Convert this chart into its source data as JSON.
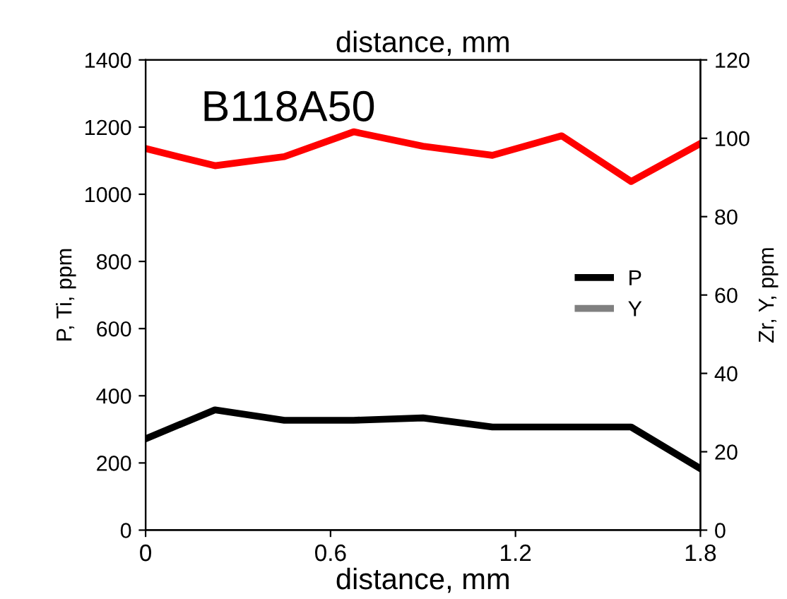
{
  "chart_data": {
    "type": "line",
    "title": "distance, mm",
    "xlabel": "distance, mm",
    "ylabel": "P, Ti, ppm",
    "y2label": "Zr, Y, ppm",
    "annotations": [
      "B118A50"
    ],
    "x": [
      0,
      0.225,
      0.45,
      0.675,
      0.9,
      1.125,
      1.35,
      1.575,
      1.8
    ],
    "series": [
      {
        "color": "#ff0000",
        "values": [
          1136,
          1085,
          1112,
          1186,
          1143,
          1116,
          1174,
          1038,
          1151
        ]
      },
      {
        "name": "P",
        "color": "#000000",
        "values": [
          272,
          358,
          327,
          327,
          334,
          307,
          307,
          307,
          183
        ]
      },
      {
        "name": "Y",
        "color": "#808080",
        "values": [
          null,
          null,
          null,
          null,
          null,
          null,
          null,
          null,
          null
        ]
      }
    ],
    "xlim": [
      0,
      1.8
    ],
    "xticks": [
      0,
      0.6,
      1.2,
      1.8
    ],
    "ylim": [
      0,
      1400
    ],
    "yticks": [
      0,
      200,
      400,
      600,
      800,
      1000,
      1200,
      1400
    ],
    "y2lim": [
      0,
      120
    ],
    "y2ticks": [
      0,
      20,
      40,
      60,
      80,
      100,
      120
    ],
    "grid": false,
    "legend": "right",
    "marker": "none",
    "line_style": "solid"
  }
}
